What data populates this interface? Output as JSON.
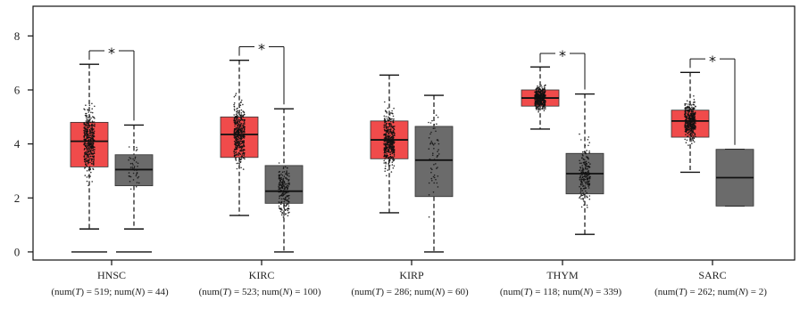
{
  "chart_data": {
    "type": "boxplot",
    "ylim": [
      -0.3,
      9.1
    ],
    "yticks": [
      0,
      2,
      4,
      6,
      8
    ],
    "tick_labels": [
      "0",
      "2",
      "4",
      "6",
      "8"
    ],
    "colors": {
      "tumor": "#f04b4b",
      "normal": "#6b6b6b",
      "points": "#111111"
    },
    "groups": [
      {
        "category": "HNSC",
        "counts": [
          "(num(",
          "T",
          ") = 519; num(",
          "N",
          ") = 44)"
        ],
        "significant": true,
        "tumor": {
          "min": 0.85,
          "q1": 3.15,
          "median": 4.1,
          "q3": 4.8,
          "max": 6.95
        },
        "normal": {
          "min": 0.85,
          "q1": 2.45,
          "median": 3.05,
          "q3": 3.6,
          "max": 4.7
        },
        "outliers": {
          "tumor": [
            0.0
          ],
          "normal": [
            0.0
          ]
        }
      },
      {
        "category": "KIRC",
        "counts": [
          "(num(",
          "T",
          ") = 523; num(",
          "N",
          ") = 100)"
        ],
        "significant": true,
        "tumor": {
          "min": 1.35,
          "q1": 3.5,
          "median": 4.35,
          "q3": 5.0,
          "max": 7.1
        },
        "normal": {
          "min": 0.0,
          "q1": 1.8,
          "median": 2.25,
          "q3": 3.2,
          "max": 5.3
        },
        "outliers": {
          "tumor": [],
          "normal": []
        }
      },
      {
        "category": "KIRP",
        "counts": [
          "(num(",
          "T",
          ") = 286; num(",
          "N",
          ") = 60)"
        ],
        "significant": false,
        "tumor": {
          "min": 1.45,
          "q1": 3.45,
          "median": 4.15,
          "q3": 4.85,
          "max": 6.55
        },
        "normal": {
          "min": 0.0,
          "q1": 2.05,
          "median": 3.4,
          "q3": 4.65,
          "max": 5.8
        },
        "outliers": {
          "tumor": [],
          "normal": []
        }
      },
      {
        "category": "THYM",
        "counts": [
          "(num(",
          "T",
          ") = 118; num(",
          "N",
          ") = 339)"
        ],
        "significant": true,
        "tumor": {
          "min": 4.55,
          "q1": 5.4,
          "median": 5.7,
          "q3": 6.0,
          "max": 6.85
        },
        "normal": {
          "min": 0.65,
          "q1": 2.15,
          "median": 2.9,
          "q3": 3.65,
          "max": 5.85
        },
        "outliers": {
          "tumor": [],
          "normal": []
        }
      },
      {
        "category": "SARC",
        "counts": [
          "(num(",
          "T",
          ") = 262; num(",
          "N",
          ") = 2)"
        ],
        "significant": true,
        "tumor": {
          "min": 2.95,
          "q1": 4.25,
          "median": 4.85,
          "q3": 5.25,
          "max": 6.65
        },
        "normal": {
          "min": 1.7,
          "q1": 1.7,
          "median": 2.75,
          "q3": 3.8,
          "max": 3.8
        },
        "outliers": {
          "tumor": [],
          "normal": []
        }
      }
    ],
    "significance_marker": "*"
  }
}
